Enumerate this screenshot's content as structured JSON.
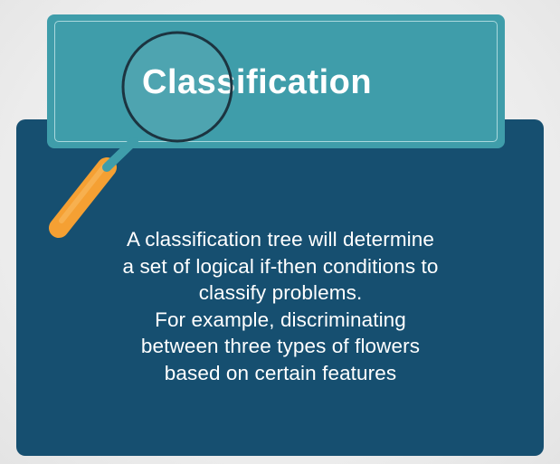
{
  "slide": {
    "title": "Classification",
    "body_lines": [
      "A classification tree will determine",
      "a set of logical if-then conditions to",
      "classify problems.",
      "For example, discriminating",
      "between three types of flowers",
      "based on certain features"
    ]
  },
  "colors": {
    "panel": "#164f70",
    "banner": "#3f9daa",
    "handle": "#f5a033",
    "lens_ring": "#1c3440"
  },
  "icons": {
    "magnifier": "magnifying-glass-icon"
  }
}
